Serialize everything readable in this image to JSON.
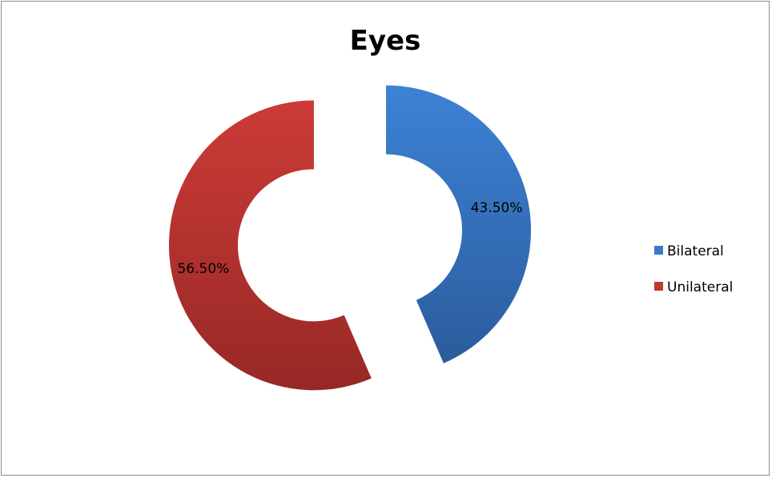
{
  "chart_data": {
    "type": "pie",
    "variant": "doughnut-exploded",
    "title": "Eyes",
    "categories": [
      "Bilateral",
      "Unilateral"
    ],
    "values": [
      43.5,
      56.5
    ],
    "data_labels": [
      "43.50%",
      "56.50%"
    ],
    "colors": [
      "#3a78c8",
      "#c0392f"
    ],
    "legend_position": "right"
  }
}
